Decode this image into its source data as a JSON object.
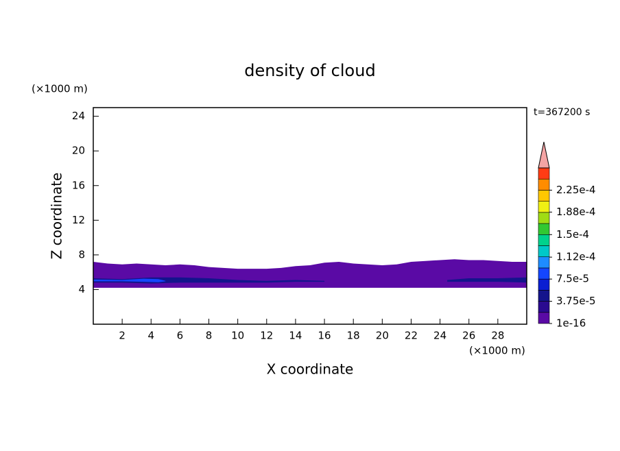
{
  "chart_data": {
    "type": "contour",
    "title": "density of cloud",
    "x_label": "X coordinate",
    "y_label": "Z coordinate",
    "x_unit": "(×1000 m)",
    "y_unit": "(×1000 m)",
    "time_label": "t=367200 s",
    "xlim": [
      0,
      30
    ],
    "ylim": [
      0,
      25
    ],
    "xticks": [
      2,
      4,
      6,
      8,
      10,
      12,
      14,
      16,
      18,
      20,
      22,
      24,
      26,
      28
    ],
    "yticks": [
      4,
      8,
      12,
      16,
      20,
      24
    ],
    "colorbar": {
      "levels": [
        1e-16,
        1.875e-05,
        3.75e-05,
        5.625e-05,
        7.5e-05,
        9.375e-05,
        0.0001125,
        0.00013125,
        0.00015,
        0.00016875,
        0.0001875,
        0.00020625,
        0.000225,
        0.00024375,
        0.0002625
      ],
      "colors": [
        "#5a0aa5",
        "#2a0a90",
        "#14148c",
        "#0a1ed2",
        "#1446ff",
        "#1e8cff",
        "#00c8c8",
        "#00d28c",
        "#32c832",
        "#a0dc14",
        "#f0f014",
        "#ffc800",
        "#ff8c00",
        "#ff3c14"
      ],
      "extend_color": "#f4a4a4",
      "ticks": [
        {
          "value": 1e-16,
          "label": "1e-16"
        },
        {
          "value": 3.75e-05,
          "label": "3.75e-5"
        },
        {
          "value": 7.5e-05,
          "label": "7.5e-5"
        },
        {
          "value": 0.000112,
          "label": "1.12e-4"
        },
        {
          "value": 0.00015,
          "label": "1.5e-4"
        },
        {
          "value": 0.000188,
          "label": "1.88e-4"
        },
        {
          "value": 0.000225,
          "label": "2.25e-4"
        }
      ]
    },
    "layers": [
      {
        "level": 0,
        "x": [
          0,
          1,
          2,
          3,
          4,
          5,
          6,
          7,
          8,
          9,
          10,
          11,
          12,
          13,
          14,
          15,
          16,
          17,
          18,
          19,
          20,
          21,
          22,
          23,
          24,
          25,
          26,
          27,
          28,
          29,
          30
        ],
        "top": [
          7.2,
          7.0,
          6.9,
          7.0,
          6.9,
          6.8,
          6.9,
          6.8,
          6.6,
          6.5,
          6.4,
          6.4,
          6.4,
          6.5,
          6.7,
          6.8,
          7.1,
          7.2,
          7.0,
          6.9,
          6.8,
          6.9,
          7.2,
          7.3,
          7.4,
          7.5,
          7.4,
          7.4,
          7.3,
          7.2,
          7.2
        ],
        "bottom": [
          4.2,
          4.2,
          4.2,
          4.2,
          4.2,
          4.2,
          4.2,
          4.2,
          4.2,
          4.2,
          4.2,
          4.2,
          4.2,
          4.2,
          4.2,
          4.2,
          4.2,
          4.2,
          4.2,
          4.2,
          4.2,
          4.2,
          4.2,
          4.2,
          4.2,
          4.2,
          4.2,
          4.2,
          4.2,
          4.2,
          4.2
        ]
      },
      {
        "level": 2,
        "x": [
          0,
          2,
          4,
          6,
          8,
          10,
          12,
          14,
          16
        ],
        "top": [
          5.3,
          5.2,
          5.4,
          5.4,
          5.3,
          5.1,
          5.0,
          5.1,
          5.0
        ],
        "bottom": [
          4.8,
          4.8,
          4.7,
          4.8,
          4.8,
          4.8,
          4.8,
          4.9,
          4.9
        ]
      },
      {
        "level": 2,
        "x": [
          24.5,
          26,
          28,
          30
        ],
        "top": [
          5.1,
          5.3,
          5.3,
          5.4
        ],
        "bottom": [
          4.9,
          4.9,
          4.9,
          4.8
        ]
      },
      {
        "level": 4,
        "x": [
          0,
          2,
          3.5,
          4.5,
          5
        ],
        "top": [
          5.15,
          5.1,
          5.25,
          5.2,
          5.0
        ],
        "bottom": [
          4.95,
          4.95,
          4.9,
          4.85,
          4.95
        ]
      }
    ]
  }
}
